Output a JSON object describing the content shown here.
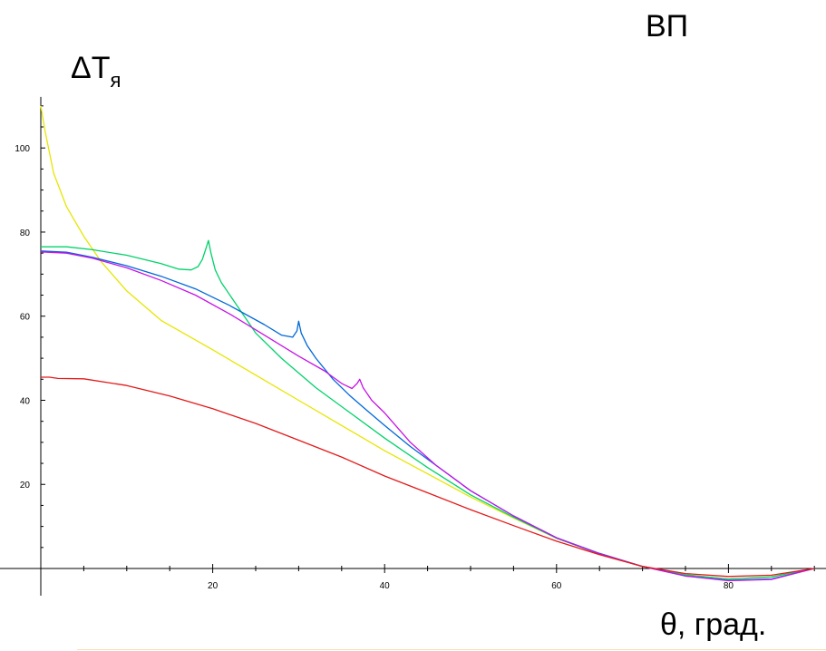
{
  "header": {
    "corner_title": "ВП"
  },
  "chart_data": {
    "type": "line",
    "title": "",
    "xlabel": "θ, град.",
    "ylabel_main": "ΔT",
    "ylabel_sub": "я",
    "xlim": [
      0,
      90
    ],
    "ylim": [
      -3,
      110
    ],
    "x_ticks": [
      20,
      40,
      60,
      80
    ],
    "y_ticks": [
      20,
      40,
      60,
      80,
      100
    ],
    "grid": false,
    "legend": "none",
    "series": [
      {
        "color": "#e6e600",
        "points": [
          [
            0,
            110
          ],
          [
            0.5,
            104
          ],
          [
            1.5,
            94
          ],
          [
            3,
            86
          ],
          [
            5,
            79
          ],
          [
            7,
            73
          ],
          [
            10,
            66
          ],
          [
            14,
            59
          ],
          [
            20,
            52
          ],
          [
            25,
            46
          ],
          [
            30,
            40
          ],
          [
            35,
            34
          ],
          [
            40,
            28
          ],
          [
            45,
            22.5
          ],
          [
            50,
            17
          ],
          [
            55,
            12
          ],
          [
            60,
            7.2
          ],
          [
            65,
            3.5
          ],
          [
            70,
            0.5
          ],
          [
            75,
            -1.5
          ],
          [
            80,
            -2.5
          ],
          [
            85,
            -2
          ],
          [
            90,
            0
          ]
        ]
      },
      {
        "color": "#00d26a",
        "points": [
          [
            0,
            76.5
          ],
          [
            3,
            76.5
          ],
          [
            6,
            75.8
          ],
          [
            10,
            74.5
          ],
          [
            14,
            72.5
          ],
          [
            16,
            71.2
          ],
          [
            17.5,
            71
          ],
          [
            18.3,
            71.8
          ],
          [
            18.8,
            73.5
          ],
          [
            19.2,
            76
          ],
          [
            19.5,
            78
          ],
          [
            19.8,
            75
          ],
          [
            20.3,
            71
          ],
          [
            21,
            68
          ],
          [
            23,
            62
          ],
          [
            25,
            56
          ],
          [
            28,
            50
          ],
          [
            32,
            43
          ],
          [
            36,
            37
          ],
          [
            40,
            31
          ],
          [
            45,
            24
          ],
          [
            50,
            17.5
          ],
          [
            55,
            12.2
          ],
          [
            60,
            7.2
          ],
          [
            65,
            3.5
          ],
          [
            70,
            0.5
          ],
          [
            75,
            -1.5
          ],
          [
            80,
            -2.5
          ],
          [
            85,
            -2
          ],
          [
            90,
            0
          ]
        ]
      },
      {
        "color": "#0068d9",
        "points": [
          [
            0,
            75.5
          ],
          [
            3,
            75.2
          ],
          [
            6,
            74
          ],
          [
            10,
            72
          ],
          [
            14,
            69.5
          ],
          [
            18,
            66.5
          ],
          [
            22,
            62.5
          ],
          [
            26,
            58
          ],
          [
            28,
            55.5
          ],
          [
            29.3,
            55
          ],
          [
            29.8,
            56.5
          ],
          [
            30,
            58.8
          ],
          [
            30.3,
            56
          ],
          [
            31,
            53
          ],
          [
            32,
            50
          ],
          [
            34,
            45
          ],
          [
            36,
            41
          ],
          [
            38,
            37.5
          ],
          [
            40,
            34
          ],
          [
            43,
            29
          ],
          [
            46,
            24.5
          ],
          [
            50,
            18.5
          ],
          [
            55,
            12.5
          ],
          [
            60,
            7.3
          ],
          [
            65,
            3.6
          ],
          [
            70,
            0.5
          ],
          [
            75,
            -1.8
          ],
          [
            80,
            -2.8
          ],
          [
            85,
            -2.5
          ],
          [
            90,
            0
          ]
        ]
      },
      {
        "color": "#c414e6",
        "points": [
          [
            0,
            75.3
          ],
          [
            3,
            75
          ],
          [
            6,
            73.8
          ],
          [
            10,
            71.5
          ],
          [
            14,
            68.5
          ],
          [
            18,
            65
          ],
          [
            22,
            60.5
          ],
          [
            26,
            55.5
          ],
          [
            30,
            50.5
          ],
          [
            33,
            47
          ],
          [
            35,
            44
          ],
          [
            36.2,
            42.8
          ],
          [
            36.8,
            44
          ],
          [
            37.1,
            45
          ],
          [
            37.5,
            43
          ],
          [
            38.5,
            40
          ],
          [
            40,
            37
          ],
          [
            43,
            30
          ],
          [
            46,
            24.5
          ],
          [
            50,
            18.5
          ],
          [
            55,
            12.5
          ],
          [
            60,
            7.3
          ],
          [
            65,
            3.5
          ],
          [
            70,
            0.5
          ],
          [
            75,
            -1.8
          ],
          [
            80,
            -2.9
          ],
          [
            85,
            -2.6
          ],
          [
            90,
            0
          ]
        ]
      },
      {
        "color": "#e31a1a",
        "points": [
          [
            0,
            45.5
          ],
          [
            1,
            45.5
          ],
          [
            2,
            45.2
          ],
          [
            5,
            45.1
          ],
          [
            10,
            43.5
          ],
          [
            15,
            41
          ],
          [
            20,
            38
          ],
          [
            25,
            34.5
          ],
          [
            30,
            30.5
          ],
          [
            35,
            26.5
          ],
          [
            40,
            22
          ],
          [
            45,
            18
          ],
          [
            50,
            14
          ],
          [
            55,
            10.2
          ],
          [
            60,
            6.5
          ],
          [
            65,
            3.3
          ],
          [
            70,
            0.5
          ],
          [
            75,
            -1.2
          ],
          [
            80,
            -1.9
          ],
          [
            85,
            -1.6
          ],
          [
            90,
            0
          ]
        ]
      }
    ]
  }
}
